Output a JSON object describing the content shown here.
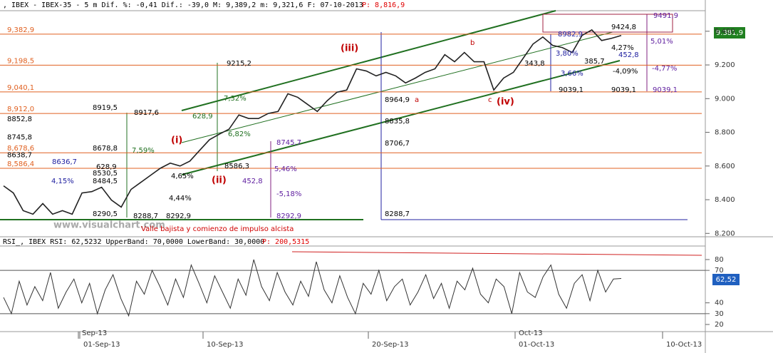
{
  "chart_data": [
    {
      "type": "line",
      "title": ", IBEX - IBEX-35 -  5 m Dif. %: -0,41 Dif.: -39,0 M: 9,389,2 m: 9,321,6 F: 07-10-2013",
      "price_label": "P: 8,816,9",
      "watermark": "www.visualchart.com",
      "last_label": "9.381,9",
      "color": "#222222",
      "values": [
        8482,
        8440,
        8335,
        8314,
        8377,
        8314,
        8335,
        8314,
        8440,
        8448,
        8474,
        8398,
        8356,
        8461,
        8503,
        8545,
        8587,
        8617,
        8600,
        8629,
        8693,
        8756,
        8789,
        8819,
        8903,
        8882,
        8882,
        8912,
        8924,
        9029,
        9008,
        8966,
        8924,
        8987,
        9038,
        9051,
        9177,
        9164,
        9135,
        9156,
        9135,
        9093,
        9122,
        9156,
        9177,
        9261,
        9219,
        9274,
        9219,
        9219,
        9051,
        9122,
        9156,
        9240,
        9324,
        9366,
        9316,
        9303,
        9274,
        9375,
        9408,
        9345,
        9358,
        9375
      ],
      "ylim": [
        8180,
        9522
      ],
      "yticks": [
        {
          "value": 9400,
          "label": "9.400"
        },
        {
          "value": 9200,
          "label": "9.200"
        },
        {
          "value": 9000,
          "label": "9.000"
        },
        {
          "value": 8800,
          "label": "8.800"
        },
        {
          "value": 8600,
          "label": "8.600"
        },
        {
          "value": 8400,
          "label": "8.400"
        },
        {
          "value": 8200,
          "label": "8.200"
        }
      ],
      "levels": [
        {
          "value": 9382.9,
          "label": "9,382,9",
          "color": "#e06020"
        },
        {
          "value": 9198.5,
          "label": "9,198,5",
          "color": "#e06020"
        },
        {
          "value": 9040.1,
          "label": "9,040,1",
          "color": "#e06020"
        },
        {
          "value": 8912.0,
          "label": "8,912,0",
          "color": "#e06020"
        },
        {
          "value": 8852.8,
          "label": "8852,8",
          "color": "#000000"
        },
        {
          "value": 8745.8,
          "label": "8745,8",
          "color": "#000000"
        },
        {
          "value": 8678.6,
          "label": "8,678,6",
          "color": "#e06020"
        },
        {
          "value": 8638.7,
          "label": "8638,7",
          "color": "#000000"
        },
        {
          "value": 8586.4,
          "label": "8,586,4",
          "color": "#e06020"
        }
      ],
      "annotations": [
        "(iii)",
        "(i)",
        "(ii)",
        "(iv)",
        "b",
        "a",
        "c",
        "9424,8",
        "9491,9",
        "8982,9",
        "3,80%",
        "343,8",
        "3,66%",
        "385,7",
        "4,27%",
        "452,8",
        "-4,09%",
        "-4,77%",
        "5,01%",
        "9039,1",
        "9039,1",
        "9039,1",
        "8964,9",
        "8835,8",
        "8706,7",
        "8288,7",
        "9215,2",
        "7,32%",
        "628,9",
        "6,82%",
        "8919,5",
        "8917,6",
        "8678,8",
        "7,59%",
        "8745,7",
        "5,46%",
        "452,8",
        "-5,18%",
        "8292,9",
        "8586,3",
        "4,15%",
        "8636,7",
        "628,9",
        "8530,5",
        "8484,5",
        "8290,5",
        "8288,7",
        "8292,9",
        "4,44%",
        "4,65%",
        "Valle bajista y comienzo de impulso alcista"
      ],
      "x_labels": [
        "Sep-13",
        "01-Sep-13",
        "10-Sep-13",
        "20-Sep-13",
        "Oct-13",
        "01-Oct-13",
        "10-Oct-13"
      ]
    },
    {
      "type": "line",
      "title": "RSI_, IBEX RSI: 62,5232 UpperBand: 70,0000 LowerBand: 30,0000",
      "price_label": "P: 200,5315",
      "last_label": "62,52",
      "color": "#333333",
      "values": [
        45,
        30,
        60,
        38,
        55,
        42,
        68,
        35,
        50,
        62,
        40,
        58,
        30,
        52,
        66,
        44,
        28,
        60,
        48,
        70,
        55,
        38,
        62,
        45,
        75,
        58,
        40,
        65,
        50,
        35,
        62,
        47,
        80,
        55,
        42,
        68,
        50,
        38,
        60,
        46,
        78,
        52,
        40,
        65,
        45,
        30,
        58,
        48,
        70,
        42,
        55,
        62,
        38,
        50,
        66,
        44,
        58,
        35,
        60,
        52,
        72,
        48,
        40,
        62,
        55,
        30,
        68,
        50,
        45,
        64,
        75,
        48,
        35,
        58,
        66,
        42,
        70,
        50,
        62,
        62.52
      ],
      "ylim": [
        13.4,
        92.5
      ],
      "yticks": [
        80,
        70,
        40,
        30,
        20
      ],
      "upper_band": 70,
      "lower_band": 30
    }
  ]
}
